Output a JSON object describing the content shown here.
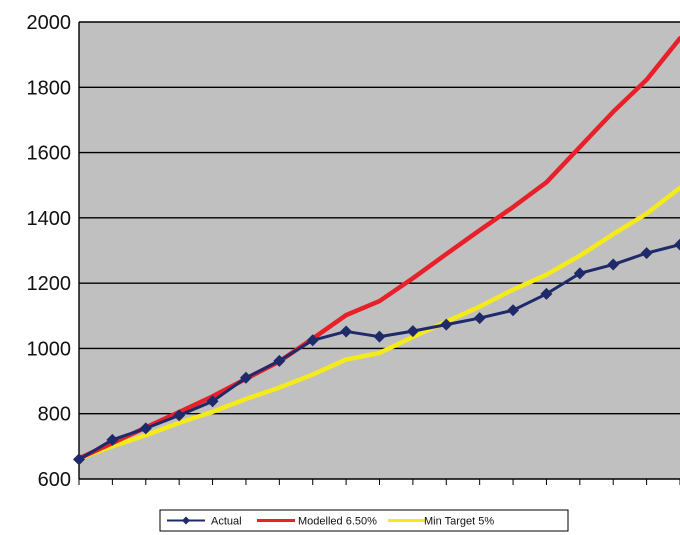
{
  "chart_data": {
    "type": "line",
    "title": "",
    "xlabel": "",
    "ylabel": "",
    "ylim": [
      600,
      2000
    ],
    "yticks": [
      600,
      800,
      1000,
      1200,
      1400,
      1600,
      1800,
      2000
    ],
    "y_tick_labels": [
      "600",
      "800",
      "1000",
      "1200",
      "1400",
      "1600",
      "1800",
      "2000"
    ],
    "x": [
      0,
      1,
      2,
      3,
      4,
      5,
      6,
      7,
      8,
      9,
      10,
      11,
      12,
      13,
      14,
      15,
      16,
      17,
      18
    ],
    "grid": true,
    "legend_position": "bottom",
    "plot_background": "#c0c0c0",
    "series": [
      {
        "name": "Actual",
        "color": "#1f2a6b",
        "marker": "diamond",
        "values": [
          660,
          720,
          755,
          795,
          838,
          910,
          962,
          1025,
          1052,
          1036,
          1053,
          1073,
          1093,
          1117,
          1167,
          1230,
          1257,
          1292,
          1318
        ]
      },
      {
        "name": "Modelled 6.50%",
        "color": "#e8202a",
        "marker": "none",
        "values": [
          663,
          710,
          758,
          805,
          853,
          907,
          960,
          1030,
          1102,
          1145,
          1215,
          1289,
          1362,
          1433,
          1509,
          1617,
          1725,
          1823,
          1950
        ]
      },
      {
        "name": "Min Target 5%",
        "color": "#f5ea1a",
        "marker": "none",
        "values": [
          663,
          700,
          734,
          772,
          806,
          845,
          880,
          920,
          966,
          986,
          1035,
          1082,
          1128,
          1180,
          1226,
          1284,
          1350,
          1413,
          1492
        ]
      }
    ]
  }
}
